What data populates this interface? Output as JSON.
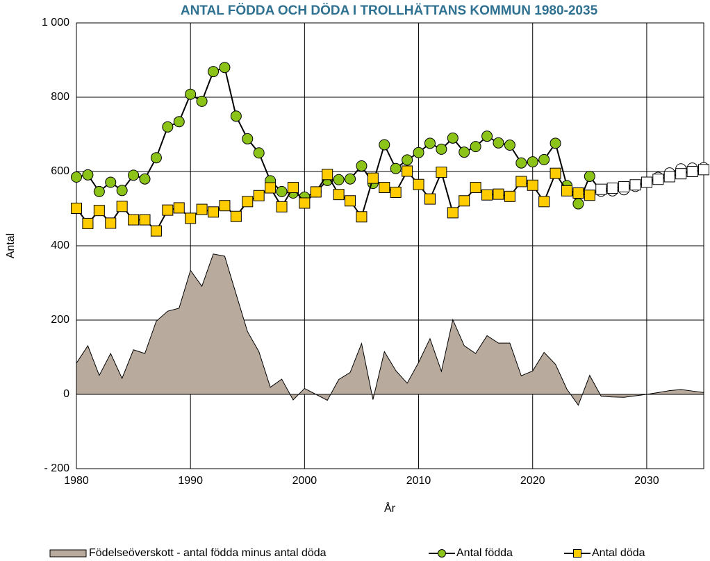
{
  "chart_data": {
    "type": "combo",
    "title": "ANTAL FÖDDA OCH DÖDA I TROLLHÄTTANS KOMMUN 1980-2035",
    "x_label": "År",
    "y_label": "Antal",
    "x": [
      1980,
      1981,
      1982,
      1983,
      1984,
      1985,
      1986,
      1987,
      1988,
      1989,
      1990,
      1991,
      1992,
      1993,
      1994,
      1995,
      1996,
      1997,
      1998,
      1999,
      2000,
      2001,
      2002,
      2003,
      2004,
      2005,
      2006,
      2007,
      2008,
      2009,
      2010,
      2011,
      2012,
      2013,
      2014,
      2015,
      2016,
      2017,
      2018,
      2019,
      2020,
      2021,
      2022,
      2023,
      2024,
      2025,
      2026,
      2027,
      2028,
      2029,
      2030,
      2031,
      2032,
      2033,
      2034,
      2035
    ],
    "xlim": [
      1980,
      2035
    ],
    "xticks": [
      1980,
      1990,
      2000,
      2010,
      2020,
      2030
    ],
    "ylim": [
      -200,
      1000
    ],
    "yticks": [
      {
        "value": -200,
        "label": "- 200"
      },
      0,
      200,
      400,
      600,
      800,
      {
        "value": 1000,
        "label": "1 000"
      }
    ],
    "grid": true,
    "legend": "bottom",
    "series": [
      {
        "name": "Födelseöverskott - antal födda minus antal döda",
        "type": "area",
        "color": "#b8aa9c",
        "values": [
          84,
          131,
          51,
          110,
          43,
          120,
          110,
          197,
          224,
          232,
          334,
          291,
          378,
          372,
          270,
          169,
          115,
          19,
          41,
          -15,
          16,
          0,
          -16,
          40,
          59,
          137,
          -14,
          115,
          64,
          30,
          86,
          150,
          62,
          201,
          131,
          110,
          158,
          138,
          138,
          50,
          63,
          113,
          81,
          14,
          -29,
          51,
          -5,
          -7,
          -8,
          -4,
          0,
          5,
          10,
          13,
          9,
          5
        ]
      },
      {
        "name": "Antal födda",
        "type": "line",
        "marker": "circle",
        "color": "#000000",
        "values": [
          585,
          591,
          546,
          571,
          549,
          590,
          580,
          637,
          720,
          734,
          808,
          789,
          869,
          880,
          749,
          688,
          650,
          575,
          546,
          542,
          531,
          545,
          576,
          578,
          580,
          615,
          568,
          672,
          608,
          631,
          651,
          676,
          660,
          690,
          652,
          667,
          695,
          677,
          671,
          623,
          626,
          632,
          676,
          562,
          513,
          587,
          547,
          548,
          551,
          560,
          571,
          584,
          596,
          607,
          609,
          610
        ],
        "marker_colors": [
          "#8cc319",
          "#8cc319",
          "#8cc319",
          "#8cc319",
          "#8cc319",
          "#8cc319",
          "#8cc319",
          "#8cc319",
          "#8cc319",
          "#8cc319",
          "#8cc319",
          "#8cc319",
          "#8cc319",
          "#8cc319",
          "#8cc319",
          "#8cc319",
          "#8cc319",
          "#8cc319",
          "#8cc319",
          "#8cc319",
          "#8cc319",
          "#8cc319",
          "#8cc319",
          "#8cc319",
          "#8cc319",
          "#8cc319",
          "#8cc319",
          "#8cc319",
          "#8cc319",
          "#8cc319",
          "#8cc319",
          "#8cc319",
          "#8cc319",
          "#8cc319",
          "#8cc319",
          "#8cc319",
          "#8cc319",
          "#8cc319",
          "#8cc319",
          "#8cc319",
          "#8cc319",
          "#8cc319",
          "#8cc319",
          "#8cc319",
          "#8cc319",
          "#8cc319",
          "#ffffff",
          "#ffffff",
          "#ffffff",
          "#ffffff",
          "#ffffff",
          "#ffffff",
          "#ffffff",
          "#ffffff",
          "#ffffff",
          "#ffffff"
        ]
      },
      {
        "name": "Antal döda",
        "type": "line",
        "marker": "square",
        "color": "#000000",
        "values": [
          501,
          460,
          495,
          461,
          506,
          470,
          470,
          440,
          496,
          502,
          474,
          498,
          491,
          508,
          479,
          519,
          535,
          556,
          505,
          557,
          515,
          545,
          592,
          538,
          521,
          478,
          582,
          557,
          544,
          601,
          565,
          526,
          598,
          489,
          521,
          557,
          537,
          539,
          533,
          573,
          563,
          519,
          595,
          548,
          542,
          536,
          552,
          555,
          559,
          564,
          571,
          579,
          586,
          594,
          600,
          605
        ],
        "marker_colors": [
          "#ffcc00",
          "#ffcc00",
          "#ffcc00",
          "#ffcc00",
          "#ffcc00",
          "#ffcc00",
          "#ffcc00",
          "#ffcc00",
          "#ffcc00",
          "#ffcc00",
          "#ffcc00",
          "#ffcc00",
          "#ffcc00",
          "#ffcc00",
          "#ffcc00",
          "#ffcc00",
          "#ffcc00",
          "#ffcc00",
          "#ffcc00",
          "#ffcc00",
          "#ffcc00",
          "#ffcc00",
          "#ffcc00",
          "#ffcc00",
          "#ffcc00",
          "#ffcc00",
          "#ffcc00",
          "#ffcc00",
          "#ffcc00",
          "#ffcc00",
          "#ffcc00",
          "#ffcc00",
          "#ffcc00",
          "#ffcc00",
          "#ffcc00",
          "#ffcc00",
          "#ffcc00",
          "#ffcc00",
          "#ffcc00",
          "#ffcc00",
          "#ffcc00",
          "#ffcc00",
          "#ffcc00",
          "#ffcc00",
          "#ffcc00",
          "#ffcc00",
          "#ffffff",
          "#ffffff",
          "#ffffff",
          "#ffffff",
          "#ffffff",
          "#ffffff",
          "#ffffff",
          "#ffffff",
          "#ffffff",
          "#ffffff"
        ]
      }
    ]
  }
}
